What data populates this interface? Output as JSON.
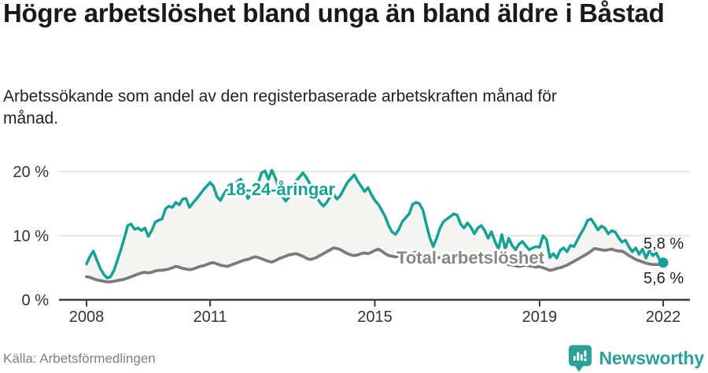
{
  "header": {
    "title": "Högre arbetslöshet bland unga än bland äldre i Båstad",
    "subtitle": "Arbetssökande som andel av den registerbaserade arbetskraften månad för månad."
  },
  "footer": {
    "source": "Källa: Arbetsförmedlingen",
    "brand": "Newsworthy"
  },
  "colors": {
    "youth_line": "#15a195",
    "total_line": "#797a7e",
    "between_fill": "#f4f4f2",
    "gridline": "#dedede",
    "axis": "#3c3c3c",
    "tick_label": "#333333",
    "value_label": "#222222",
    "total_label": "#85868a",
    "brand_teal": "#2e9f99"
  },
  "chart_data": {
    "type": "line",
    "title": "Högre arbetslöshet bland unga än bland äldre i Båstad",
    "subtitle": "Arbetssökande som andel av den registerbaserade arbetskraften månad för månad.",
    "y_unit": "%",
    "x_start": "2008-01",
    "x_end": "2022-01",
    "x_frequency": "monthly",
    "x_ticks": [
      2008,
      2011,
      2015,
      2019,
      2022
    ],
    "y_ticks": [
      {
        "value": 0,
        "label": "0 %"
      },
      {
        "value": 10,
        "label": "10 %"
      },
      {
        "value": 20,
        "label": "20 %"
      }
    ],
    "ylim": [
      0,
      21.5
    ],
    "grid": "horizontal-only",
    "legend_position": "inline-labels",
    "series": [
      {
        "name": "18-24-åringar",
        "end_label": "5,8 %",
        "end_value": 5.8,
        "values": [
          5.6,
          6.8,
          7.6,
          6.2,
          4.9,
          4.0,
          3.4,
          3.6,
          4.6,
          6.2,
          7.8,
          9.6,
          11.6,
          11.8,
          11.0,
          11.2,
          10.8,
          11.2,
          9.9,
          10.8,
          12.1,
          12.4,
          12.6,
          14.2,
          14.6,
          14.4,
          15.2,
          14.8,
          15.7,
          15.8,
          14.4,
          15.1,
          15.7,
          16.4,
          17.1,
          17.7,
          18.3,
          17.7,
          16.1,
          15.5,
          16.5,
          17.3,
          16.9,
          17.5,
          18.5,
          18.8,
          17.3,
          15.8,
          16.4,
          17.5,
          18.2,
          19.8,
          20.1,
          18.8,
          20.2,
          19.0,
          17.5,
          16.2,
          15.4,
          16.0,
          17.9,
          18.5,
          19.1,
          19.8,
          19.1,
          18.2,
          17.1,
          16.1,
          15.2,
          14.6,
          15.2,
          16.1,
          16.4,
          15.7,
          16.3,
          17.3,
          18.3,
          18.9,
          19.5,
          18.5,
          17.7,
          16.9,
          17.5,
          16.4,
          15.5,
          14.9,
          14.0,
          13.0,
          11.6,
          10.6,
          10.2,
          11.0,
          12.2,
          12.8,
          13.4,
          14.9,
          15.2,
          15.0,
          14.0,
          11.8,
          9.7,
          8.3,
          9.6,
          11.2,
          12.2,
          12.6,
          13.0,
          13.4,
          13.2,
          11.8,
          11.2,
          12.0,
          11.3,
          10.3,
          11.2,
          11.6,
          10.8,
          9.6,
          10.6,
          9.1,
          7.9,
          10.2,
          7.9,
          9.6,
          8.5,
          7.8,
          8.7,
          9.1,
          8.4,
          7.8,
          8.1,
          8.3,
          8.2,
          10.0,
          9.4,
          6.6,
          7.2,
          6.5,
          7.7,
          8.1,
          7.5,
          8.5,
          8.3,
          9.3,
          10.3,
          11.2,
          12.4,
          12.6,
          11.8,
          10.9,
          11.5,
          11.2,
          10.3,
          10.8,
          10.6,
          9.7,
          9.0,
          9.3,
          8.3,
          7.5,
          8.1,
          7.1,
          7.9,
          6.5,
          7.7,
          6.9,
          7.3,
          6.2,
          5.8
        ]
      },
      {
        "name": "Total arbetslöshet",
        "end_label": "5,6 %",
        "end_value": 5.6,
        "values": [
          3.6,
          3.5,
          3.3,
          3.1,
          3.0,
          2.9,
          2.8,
          2.8,
          2.9,
          3.0,
          3.1,
          3.2,
          3.4,
          3.6,
          3.8,
          4.0,
          4.2,
          4.3,
          4.2,
          4.3,
          4.5,
          4.6,
          4.6,
          4.7,
          4.8,
          5.0,
          5.2,
          5.1,
          4.9,
          4.8,
          4.7,
          4.8,
          5.0,
          5.2,
          5.3,
          5.5,
          5.7,
          5.8,
          5.6,
          5.4,
          5.3,
          5.2,
          5.4,
          5.6,
          5.8,
          6.0,
          6.2,
          6.3,
          6.5,
          6.7,
          6.6,
          6.4,
          6.2,
          6.0,
          5.9,
          6.1,
          6.4,
          6.6,
          6.8,
          7.0,
          7.1,
          7.2,
          7.0,
          6.8,
          6.5,
          6.3,
          6.4,
          6.6,
          6.9,
          7.2,
          7.5,
          7.8,
          8.1,
          8.0,
          7.8,
          7.5,
          7.2,
          7.0,
          6.9,
          7.0,
          7.2,
          7.3,
          7.2,
          7.4,
          7.7,
          7.9,
          7.6,
          7.2,
          6.9,
          6.8,
          6.7,
          6.8,
          7.0,
          7.1,
          7.2,
          7.3,
          7.4,
          7.3,
          7.1,
          6.9,
          6.7,
          6.6,
          6.5,
          6.6,
          6.7,
          6.8,
          6.9,
          6.9,
          6.8,
          6.7,
          6.6,
          6.4,
          6.3,
          6.2,
          6.1,
          6.2,
          6.3,
          6.2,
          6.1,
          6.0,
          5.9,
          5.8,
          5.6,
          5.5,
          5.4,
          5.3,
          5.2,
          5.3,
          5.4,
          5.3,
          5.2,
          5.1,
          5.2,
          5.0,
          4.8,
          4.6,
          4.7,
          4.9,
          5.0,
          5.2,
          5.4,
          5.7,
          6.0,
          6.3,
          6.6,
          6.9,
          7.2,
          7.6,
          8.0,
          7.9,
          7.8,
          7.7,
          7.8,
          7.9,
          7.7,
          7.6,
          7.6,
          7.3,
          6.9,
          6.6,
          6.3,
          6.1,
          5.9,
          5.7,
          5.6,
          5.5,
          5.5,
          5.5,
          5.6
        ]
      }
    ]
  }
}
